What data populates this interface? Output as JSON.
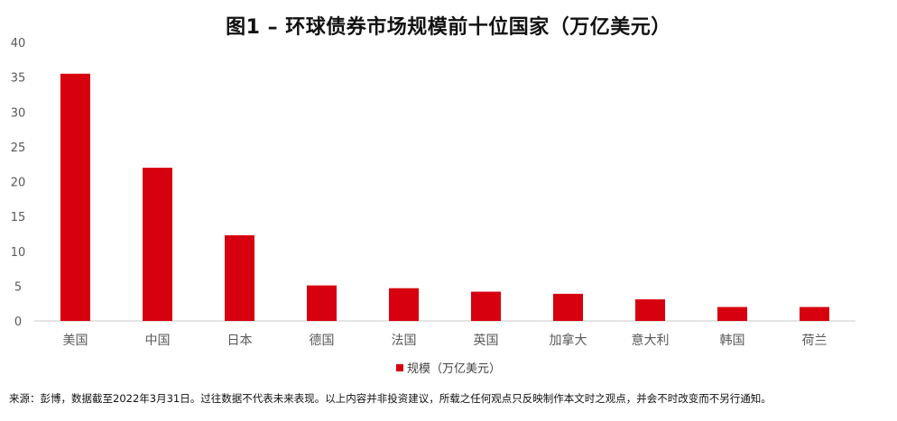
{
  "chart_data": {
    "type": "bar",
    "title": "图1 – 环球债券市场规模前十位国家（万亿美元）",
    "categories": [
      "美国",
      "中国",
      "日本",
      "德国",
      "法国",
      "英国",
      "加拿大",
      "意大利",
      "韩国",
      "荷兰"
    ],
    "series": [
      {
        "name": "规模（万亿美元）",
        "values": [
          35.5,
          22.0,
          12.3,
          5.1,
          4.7,
          4.2,
          3.9,
          3.1,
          2.0,
          2.0
        ]
      }
    ],
    "ylim": [
      0,
      40
    ],
    "yticks": [
      "0",
      "5",
      "10",
      "15",
      "20",
      "25",
      "30",
      "35",
      "40"
    ],
    "grid": false,
    "legend_position": "bottom",
    "bar_color": "#d7000f"
  },
  "footnote": "来源：彭博，数据截至2022年3月31日。过往数据不代表未来表现。以上内容并非投资建议，所载之任何观点只反映制作本文时之观点，并会不时改变而不另行通知。"
}
